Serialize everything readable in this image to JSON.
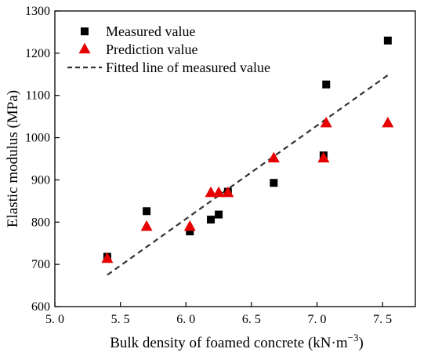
{
  "chart_data": {
    "type": "scatter",
    "xlabel": "Bulk density of foamed concrete (kN·m",
    "xlabel_superscript": "−3",
    "xlabel_suffix": ")",
    "ylabel": "Elastic modulus (MPa)",
    "xlim": [
      5.0,
      7.75
    ],
    "ylim": [
      600,
      1300
    ],
    "xticks": [
      5.0,
      5.5,
      6.0,
      6.5,
      7.0,
      7.5
    ],
    "xtick_labels": [
      "5. 0",
      "5. 5",
      "6. 0",
      "6. 5",
      "7. 0",
      "7. 5"
    ],
    "yticks": [
      600,
      700,
      800,
      900,
      1000,
      1100,
      1200,
      1300
    ],
    "ytick_labels": [
      "600",
      "700",
      "800",
      "900",
      "1000",
      "1100",
      "1200",
      "1300"
    ],
    "grid": false,
    "legend_position": "top-left",
    "series": [
      {
        "name": "Measured value",
        "marker": "square",
        "color": "#000000",
        "points": [
          {
            "x": 5.4,
            "y": 718
          },
          {
            "x": 5.7,
            "y": 826
          },
          {
            "x": 6.03,
            "y": 778
          },
          {
            "x": 6.19,
            "y": 806
          },
          {
            "x": 6.25,
            "y": 818
          },
          {
            "x": 6.32,
            "y": 872
          },
          {
            "x": 6.67,
            "y": 893
          },
          {
            "x": 7.05,
            "y": 958
          },
          {
            "x": 7.07,
            "y": 1126
          },
          {
            "x": 7.54,
            "y": 1230
          }
        ]
      },
      {
        "name": "Prediction value",
        "marker": "triangle",
        "color": "#e60000",
        "points": [
          {
            "x": 5.4,
            "y": 713
          },
          {
            "x": 5.7,
            "y": 789
          },
          {
            "x": 6.03,
            "y": 789
          },
          {
            "x": 6.19,
            "y": 869
          },
          {
            "x": 6.25,
            "y": 869
          },
          {
            "x": 6.32,
            "y": 869
          },
          {
            "x": 6.67,
            "y": 951
          },
          {
            "x": 7.05,
            "y": 951
          },
          {
            "x": 7.07,
            "y": 1034
          },
          {
            "x": 7.54,
            "y": 1034
          }
        ]
      },
      {
        "name": "Fitted line of measured value",
        "marker": "dashed-line",
        "color": "#333333",
        "points": [
          {
            "x": 5.4,
            "y": 675
          },
          {
            "x": 7.54,
            "y": 1148
          }
        ]
      }
    ]
  }
}
